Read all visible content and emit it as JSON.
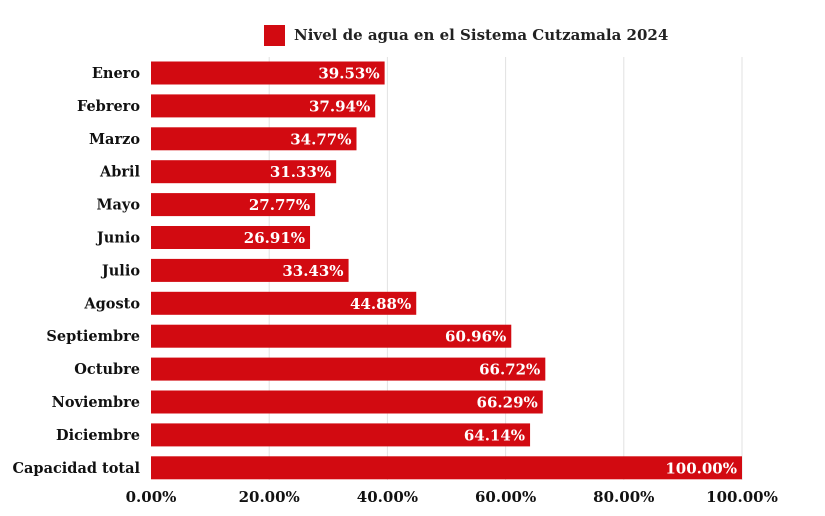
{
  "legend": {
    "label": "Nivel de agua en el Sistema Cutzamala 2024"
  },
  "colors": {
    "bar": "#d20a11",
    "bar_label": "#ffffff",
    "grid": "#e2e2e2",
    "axis_text": "#111111"
  },
  "chart_data": {
    "type": "bar",
    "orientation": "horizontal",
    "title": "",
    "xlabel": "",
    "ylabel": "",
    "categories": [
      "Enero",
      "Febrero",
      "Marzo",
      "Abril",
      "Mayo",
      "Junio",
      "Julio",
      "Agosto",
      "Septiembre",
      "Octubre",
      "Noviembre",
      "Diciembre",
      "Capacidad total"
    ],
    "series": [
      {
        "name": "Nivel de agua en el Sistema Cutzamala 2024",
        "values": [
          39.53,
          37.94,
          34.77,
          31.33,
          27.77,
          26.91,
          33.43,
          44.88,
          60.96,
          66.72,
          66.29,
          64.14,
          100.0
        ],
        "labels": [
          "39.53%",
          "37.94%",
          "34.77%",
          "31.33%",
          "27.77%",
          "26.91%",
          "33.43%",
          "44.88%",
          "60.96%",
          "66.72%",
          "66.29%",
          "64.14%",
          "100.00%"
        ]
      }
    ],
    "xlim": [
      0,
      100
    ],
    "xticks": [
      0,
      20,
      40,
      60,
      80,
      100
    ],
    "xtick_labels": [
      "0.00%",
      "20.00%",
      "40.00%",
      "60.00%",
      "80.00%",
      "100.00%"
    ],
    "grid": true,
    "legend_position": "top"
  }
}
